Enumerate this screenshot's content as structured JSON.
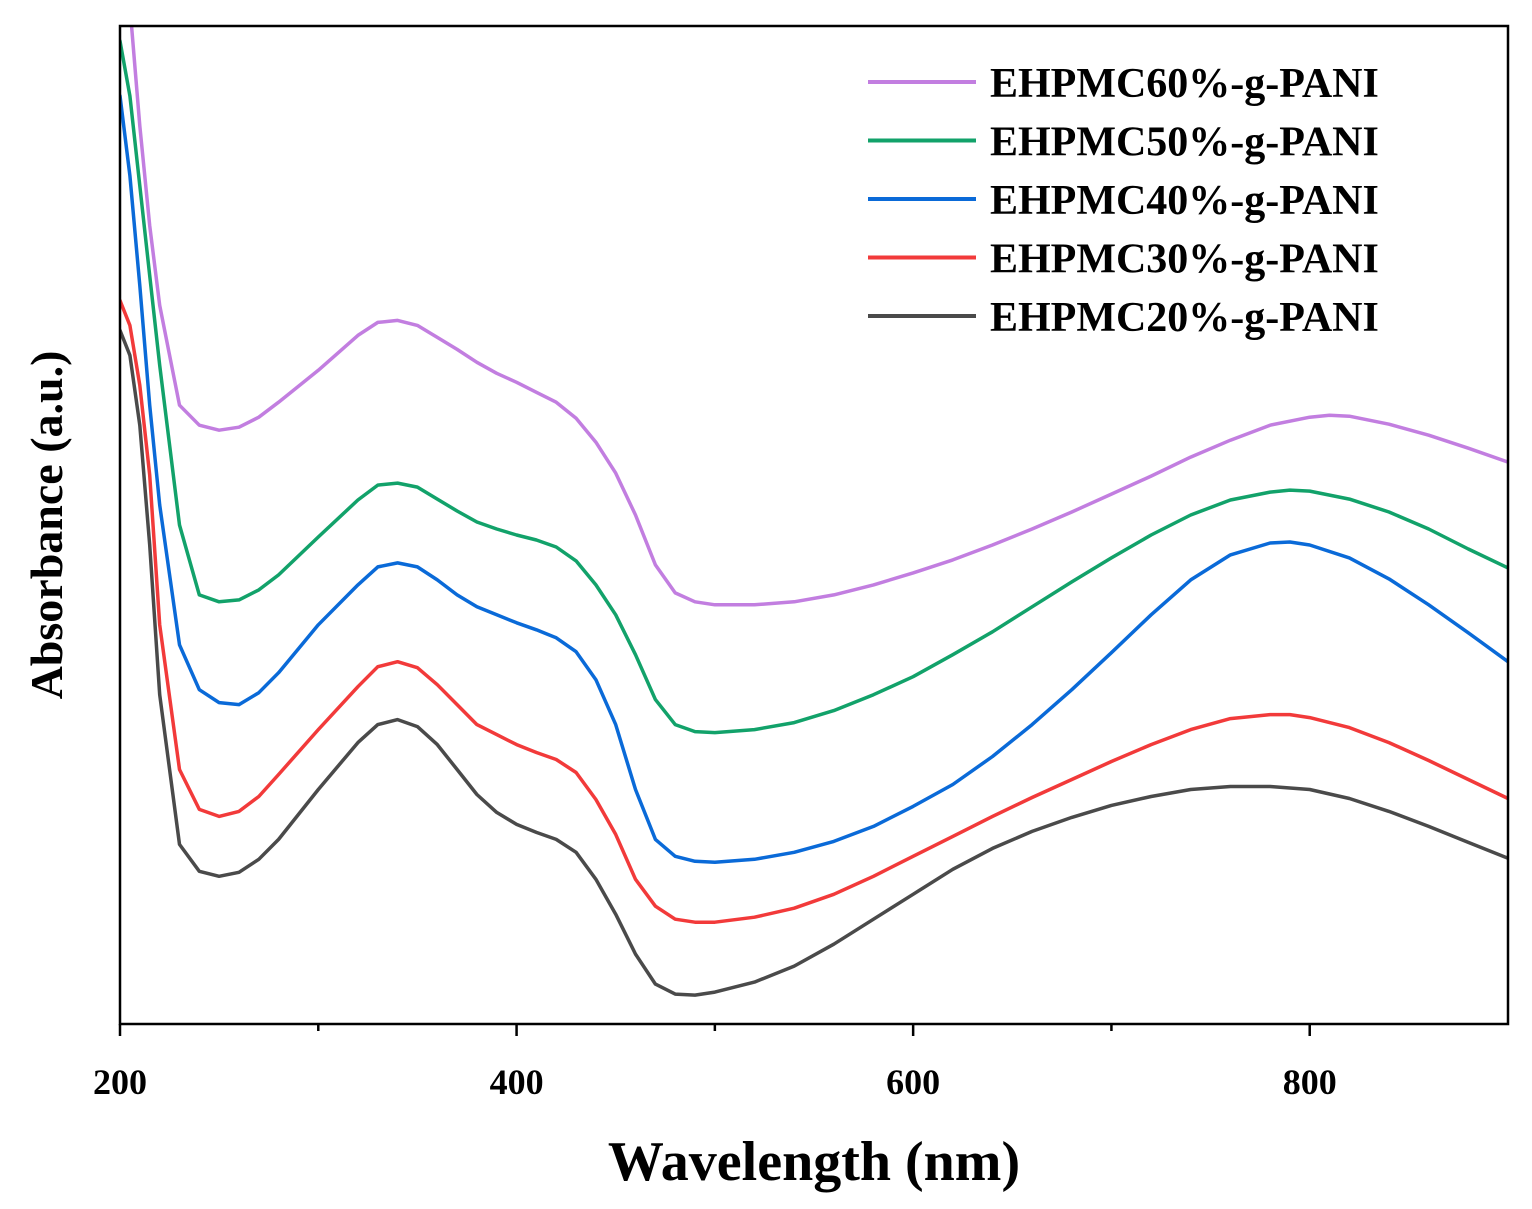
{
  "chart_data": {
    "type": "line",
    "title": "",
    "xlabel": "Wavelength (nm)",
    "ylabel": "Absorbance (a.u.)",
    "xlim": [
      200,
      900
    ],
    "ylim": [
      0,
      1
    ],
    "x_ticks": [
      200,
      400,
      600,
      800
    ],
    "x_minor_ticks": [
      300,
      500,
      700
    ],
    "grid": false,
    "legend_position": "top-right",
    "series": [
      {
        "name": "EHPMC60%-g-PANI",
        "color": "#c27ee0",
        "points": [
          [
            200,
            1.08
          ],
          [
            205,
            1.02
          ],
          [
            210,
            0.9
          ],
          [
            215,
            0.8
          ],
          [
            220,
            0.72
          ],
          [
            230,
            0.62
          ],
          [
            240,
            0.6
          ],
          [
            250,
            0.595
          ],
          [
            260,
            0.598
          ],
          [
            270,
            0.608
          ],
          [
            280,
            0.623
          ],
          [
            300,
            0.655
          ],
          [
            320,
            0.69
          ],
          [
            330,
            0.703
          ],
          [
            340,
            0.705
          ],
          [
            350,
            0.7
          ],
          [
            360,
            0.688
          ],
          [
            370,
            0.676
          ],
          [
            380,
            0.663
          ],
          [
            390,
            0.652
          ],
          [
            400,
            0.643
          ],
          [
            410,
            0.633
          ],
          [
            420,
            0.623
          ],
          [
            430,
            0.607
          ],
          [
            440,
            0.583
          ],
          [
            450,
            0.552
          ],
          [
            460,
            0.51
          ],
          [
            470,
            0.46
          ],
          [
            480,
            0.432
          ],
          [
            490,
            0.423
          ],
          [
            500,
            0.42
          ],
          [
            520,
            0.42
          ],
          [
            540,
            0.423
          ],
          [
            560,
            0.43
          ],
          [
            580,
            0.44
          ],
          [
            600,
            0.452
          ],
          [
            620,
            0.465
          ],
          [
            640,
            0.48
          ],
          [
            660,
            0.496
          ],
          [
            680,
            0.513
          ],
          [
            700,
            0.531
          ],
          [
            720,
            0.549
          ],
          [
            740,
            0.568
          ],
          [
            760,
            0.585
          ],
          [
            780,
            0.6
          ],
          [
            800,
            0.608
          ],
          [
            810,
            0.61
          ],
          [
            820,
            0.609
          ],
          [
            840,
            0.601
          ],
          [
            860,
            0.59
          ],
          [
            880,
            0.577
          ],
          [
            900,
            0.563
          ]
        ]
      },
      {
        "name": "EHPMC50%-g-PANI",
        "color": "#12a26a",
        "points": [
          [
            200,
            0.985
          ],
          [
            205,
            0.93
          ],
          [
            210,
            0.84
          ],
          [
            215,
            0.75
          ],
          [
            220,
            0.66
          ],
          [
            230,
            0.5
          ],
          [
            240,
            0.43
          ],
          [
            250,
            0.423
          ],
          [
            260,
            0.425
          ],
          [
            270,
            0.435
          ],
          [
            280,
            0.45
          ],
          [
            300,
            0.488
          ],
          [
            320,
            0.525
          ],
          [
            330,
            0.54
          ],
          [
            340,
            0.542
          ],
          [
            350,
            0.538
          ],
          [
            360,
            0.526
          ],
          [
            370,
            0.514
          ],
          [
            380,
            0.503
          ],
          [
            390,
            0.496
          ],
          [
            400,
            0.49
          ],
          [
            410,
            0.485
          ],
          [
            420,
            0.478
          ],
          [
            430,
            0.464
          ],
          [
            440,
            0.44
          ],
          [
            450,
            0.41
          ],
          [
            460,
            0.37
          ],
          [
            470,
            0.325
          ],
          [
            480,
            0.3
          ],
          [
            490,
            0.293
          ],
          [
            500,
            0.292
          ],
          [
            520,
            0.295
          ],
          [
            540,
            0.302
          ],
          [
            560,
            0.314
          ],
          [
            580,
            0.33
          ],
          [
            600,
            0.348
          ],
          [
            620,
            0.37
          ],
          [
            640,
            0.393
          ],
          [
            660,
            0.418
          ],
          [
            680,
            0.443
          ],
          [
            700,
            0.467
          ],
          [
            720,
            0.49
          ],
          [
            740,
            0.51
          ],
          [
            760,
            0.525
          ],
          [
            780,
            0.533
          ],
          [
            790,
            0.535
          ],
          [
            800,
            0.534
          ],
          [
            820,
            0.526
          ],
          [
            840,
            0.513
          ],
          [
            860,
            0.496
          ],
          [
            880,
            0.476
          ],
          [
            900,
            0.457
          ]
        ]
      },
      {
        "name": "EHPMC40%-g-PANI",
        "color": "#0a6ad8",
        "points": [
          [
            200,
            0.93
          ],
          [
            205,
            0.85
          ],
          [
            210,
            0.74
          ],
          [
            215,
            0.62
          ],
          [
            220,
            0.52
          ],
          [
            230,
            0.38
          ],
          [
            240,
            0.335
          ],
          [
            250,
            0.322
          ],
          [
            260,
            0.32
          ],
          [
            270,
            0.332
          ],
          [
            280,
            0.352
          ],
          [
            300,
            0.4
          ],
          [
            320,
            0.44
          ],
          [
            330,
            0.458
          ],
          [
            340,
            0.462
          ],
          [
            350,
            0.458
          ],
          [
            360,
            0.445
          ],
          [
            370,
            0.43
          ],
          [
            380,
            0.418
          ],
          [
            390,
            0.41
          ],
          [
            400,
            0.402
          ],
          [
            410,
            0.395
          ],
          [
            420,
            0.387
          ],
          [
            430,
            0.373
          ],
          [
            440,
            0.345
          ],
          [
            450,
            0.3
          ],
          [
            460,
            0.235
          ],
          [
            470,
            0.185
          ],
          [
            480,
            0.168
          ],
          [
            490,
            0.163
          ],
          [
            500,
            0.162
          ],
          [
            520,
            0.165
          ],
          [
            540,
            0.172
          ],
          [
            560,
            0.183
          ],
          [
            580,
            0.198
          ],
          [
            600,
            0.218
          ],
          [
            620,
            0.24
          ],
          [
            640,
            0.268
          ],
          [
            660,
            0.3
          ],
          [
            680,
            0.335
          ],
          [
            700,
            0.372
          ],
          [
            720,
            0.41
          ],
          [
            740,
            0.445
          ],
          [
            760,
            0.47
          ],
          [
            780,
            0.482
          ],
          [
            790,
            0.483
          ],
          [
            800,
            0.48
          ],
          [
            820,
            0.467
          ],
          [
            840,
            0.446
          ],
          [
            860,
            0.42
          ],
          [
            880,
            0.392
          ],
          [
            900,
            0.363
          ]
        ]
      },
      {
        "name": "EHPMC30%-g-PANI",
        "color": "#f23a3a",
        "points": [
          [
            200,
            0.725
          ],
          [
            205,
            0.7
          ],
          [
            210,
            0.64
          ],
          [
            215,
            0.55
          ],
          [
            220,
            0.4
          ],
          [
            230,
            0.255
          ],
          [
            240,
            0.215
          ],
          [
            250,
            0.208
          ],
          [
            260,
            0.213
          ],
          [
            270,
            0.228
          ],
          [
            280,
            0.25
          ],
          [
            300,
            0.295
          ],
          [
            320,
            0.338
          ],
          [
            330,
            0.358
          ],
          [
            340,
            0.363
          ],
          [
            350,
            0.357
          ],
          [
            360,
            0.34
          ],
          [
            370,
            0.32
          ],
          [
            380,
            0.3
          ],
          [
            390,
            0.29
          ],
          [
            400,
            0.28
          ],
          [
            410,
            0.272
          ],
          [
            420,
            0.265
          ],
          [
            430,
            0.252
          ],
          [
            440,
            0.225
          ],
          [
            450,
            0.19
          ],
          [
            460,
            0.145
          ],
          [
            470,
            0.118
          ],
          [
            480,
            0.105
          ],
          [
            490,
            0.102
          ],
          [
            500,
            0.102
          ],
          [
            520,
            0.107
          ],
          [
            540,
            0.116
          ],
          [
            560,
            0.13
          ],
          [
            580,
            0.148
          ],
          [
            600,
            0.168
          ],
          [
            620,
            0.188
          ],
          [
            640,
            0.208
          ],
          [
            660,
            0.227
          ],
          [
            680,
            0.245
          ],
          [
            700,
            0.263
          ],
          [
            720,
            0.28
          ],
          [
            740,
            0.295
          ],
          [
            760,
            0.306
          ],
          [
            780,
            0.31
          ],
          [
            790,
            0.31
          ],
          [
            800,
            0.307
          ],
          [
            820,
            0.297
          ],
          [
            840,
            0.282
          ],
          [
            860,
            0.264
          ],
          [
            880,
            0.245
          ],
          [
            900,
            0.226
          ]
        ]
      },
      {
        "name": "EHPMC20%-g-PANI",
        "color": "#4a4a4a",
        "points": [
          [
            200,
            0.695
          ],
          [
            205,
            0.67
          ],
          [
            210,
            0.6
          ],
          [
            215,
            0.48
          ],
          [
            220,
            0.33
          ],
          [
            230,
            0.18
          ],
          [
            240,
            0.153
          ],
          [
            250,
            0.148
          ],
          [
            260,
            0.152
          ],
          [
            270,
            0.165
          ],
          [
            280,
            0.185
          ],
          [
            300,
            0.235
          ],
          [
            320,
            0.282
          ],
          [
            330,
            0.3
          ],
          [
            340,
            0.305
          ],
          [
            350,
            0.298
          ],
          [
            360,
            0.28
          ],
          [
            370,
            0.255
          ],
          [
            380,
            0.23
          ],
          [
            390,
            0.212
          ],
          [
            400,
            0.2
          ],
          [
            410,
            0.192
          ],
          [
            420,
            0.185
          ],
          [
            430,
            0.172
          ],
          [
            440,
            0.145
          ],
          [
            450,
            0.11
          ],
          [
            460,
            0.07
          ],
          [
            470,
            0.04
          ],
          [
            480,
            0.03
          ],
          [
            490,
            0.029
          ],
          [
            500,
            0.032
          ],
          [
            520,
            0.042
          ],
          [
            540,
            0.058
          ],
          [
            560,
            0.08
          ],
          [
            580,
            0.105
          ],
          [
            600,
            0.13
          ],
          [
            620,
            0.155
          ],
          [
            640,
            0.176
          ],
          [
            660,
            0.193
          ],
          [
            680,
            0.207
          ],
          [
            700,
            0.219
          ],
          [
            720,
            0.228
          ],
          [
            740,
            0.235
          ],
          [
            760,
            0.238
          ],
          [
            780,
            0.238
          ],
          [
            800,
            0.235
          ],
          [
            820,
            0.226
          ],
          [
            840,
            0.213
          ],
          [
            860,
            0.198
          ],
          [
            880,
            0.182
          ],
          [
            900,
            0.166
          ]
        ]
      }
    ]
  }
}
